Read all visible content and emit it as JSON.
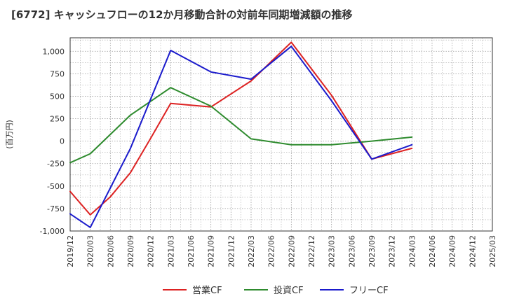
{
  "chart_data": {
    "type": "line",
    "title": "[6772]  キャッシュフローの12か月移動合計の対前年同期増減額の推移",
    "ylabel": "(百万円)",
    "xlabel": "",
    "ylim": [
      -1000,
      1150
    ],
    "yticks": [
      -1000,
      -750,
      -500,
      -250,
      0,
      250,
      500,
      750,
      1000
    ],
    "ytick_labels": [
      "-1,000",
      "-750",
      "-500",
      "-250",
      "0",
      "250",
      "500",
      "750",
      "1,000"
    ],
    "categories": [
      "2019/12",
      "2020/03",
      "2020/06",
      "2020/09",
      "2020/12",
      "2021/03",
      "2021/06",
      "2021/09",
      "2021/12",
      "2022/03",
      "2022/06",
      "2022/09",
      "2022/12",
      "2023/03",
      "2023/06",
      "2023/09",
      "2023/12",
      "2024/03",
      "2024/06",
      "2024/09",
      "2024/12",
      "2025/03"
    ],
    "grid": true,
    "legend_position": "bottom",
    "series": [
      {
        "name": "営業CF",
        "color": "#dd2222",
        "values": [
          -560,
          -820,
          -620,
          -350,
          30,
          420,
          400,
          380,
          null,
          670,
          null,
          1100,
          null,
          510,
          null,
          -200,
          null,
          -80,
          null,
          null,
          null,
          null
        ]
      },
      {
        "name": "投資CF",
        "color": "#2e8b2e",
        "values": [
          -240,
          -140,
          null,
          290,
          null,
          595,
          null,
          390,
          null,
          25,
          null,
          -40,
          null,
          -40,
          null,
          0,
          null,
          45,
          null,
          null,
          null,
          null
        ]
      },
      {
        "name": "フリーCF",
        "color": "#1a1acc",
        "values": [
          -810,
          -960,
          null,
          -80,
          null,
          1010,
          null,
          770,
          null,
          690,
          null,
          1055,
          null,
          450,
          null,
          -200,
          null,
          -40,
          null,
          null,
          null,
          null
        ]
      }
    ]
  }
}
